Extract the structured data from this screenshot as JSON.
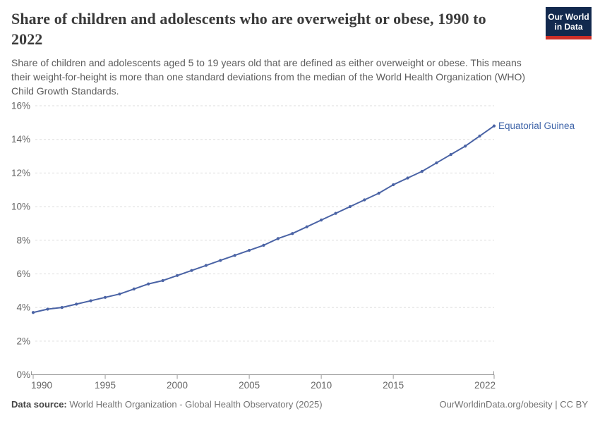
{
  "header": {
    "title": "Share of children and adolescents who are overweight or obese, 1990 to 2022",
    "subtitle": "Share of children and adolescents aged 5 to 19 years old that are defined as either overweight or obese. This means their weight-for-height is more than one standard deviations from the median of the World Health Organization (WHO) Child Growth Standards.",
    "logo": {
      "line1": "Our World",
      "line2": "in Data",
      "bg_color": "#12294e",
      "bar_color": "#cc2f28"
    }
  },
  "chart_data": {
    "type": "line",
    "title": "Share of children and adolescents who are overweight or obese, 1990 to 2022",
    "entity_label": "Equatorial Guinea",
    "x": [
      1990,
      1991,
      1992,
      1993,
      1994,
      1995,
      1996,
      1997,
      1998,
      1999,
      2000,
      2001,
      2002,
      2003,
      2004,
      2005,
      2006,
      2007,
      2008,
      2009,
      2010,
      2011,
      2012,
      2013,
      2014,
      2015,
      2016,
      2017,
      2018,
      2019,
      2020,
      2021,
      2022
    ],
    "series": [
      {
        "name": "Equatorial Guinea",
        "values": [
          3.7,
          3.9,
          4.0,
          4.2,
          4.4,
          4.6,
          4.8,
          5.1,
          5.4,
          5.6,
          5.9,
          6.2,
          6.5,
          6.8,
          7.1,
          7.4,
          7.7,
          8.1,
          8.4,
          8.8,
          9.2,
          9.6,
          10.0,
          10.4,
          10.8,
          11.3,
          11.7,
          12.1,
          12.6,
          13.1,
          13.6,
          14.2,
          14.8
        ]
      }
    ],
    "ylim": [
      0,
      16
    ],
    "ytick_interval": 2,
    "ytick_suffix": "%",
    "xticks": [
      1990,
      1995,
      2000,
      2005,
      2010,
      2015,
      2022
    ],
    "grid": "horizontal-dashed",
    "legend_position": "end-of-line",
    "line_color": "#4a63a5",
    "label_color": "#3d63a8",
    "grid_color": "#dddddd",
    "axis_color": "#999999",
    "tick_label_color": "#666666"
  },
  "footer": {
    "datasource_label": "Data source:",
    "datasource_value": "World Health Organization - Global Health Observatory (2025)",
    "rights": "OurWorldinData.org/obesity | CC BY"
  }
}
